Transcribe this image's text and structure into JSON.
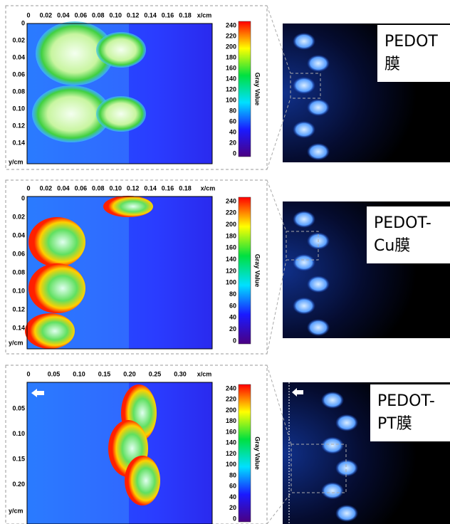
{
  "panels": [
    {
      "x_ticks": [
        "0",
        "0.02",
        "0.04",
        "0.06",
        "0.08",
        "0.10",
        "0.12",
        "0.14",
        "0.16",
        "0.18"
      ],
      "x_unit": "x/cm",
      "y_ticks": [
        "0",
        "0.02",
        "0.04",
        "0.06",
        "0.08",
        "0.10",
        "0.12",
        "0.14"
      ],
      "y_unit": "y/cm",
      "colorbar_ticks": [
        "240",
        "220",
        "200",
        "180",
        "160",
        "140",
        "120",
        "100",
        "80",
        "60",
        "40",
        "20",
        "0"
      ],
      "colorbar_label": "Gray Value",
      "film_label": [
        "PEDOT",
        "膜"
      ]
    },
    {
      "x_ticks": [
        "0",
        "0.02",
        "0.04",
        "0.06",
        "0.08",
        "0.10",
        "0.12",
        "0.14",
        "0.16",
        "0.18"
      ],
      "x_unit": "x/cm",
      "y_ticks": [
        "0",
        "0.02",
        "0.04",
        "0.06",
        "0.08",
        "0.10",
        "0.12",
        "0.14"
      ],
      "y_unit": "y/cm",
      "colorbar_ticks": [
        "240",
        "220",
        "200",
        "180",
        "160",
        "140",
        "120",
        "100",
        "80",
        "60",
        "40",
        "20",
        "0"
      ],
      "colorbar_label": "Gray Value",
      "film_label": [
        "PEDOT-",
        "Cu膜"
      ]
    },
    {
      "x_ticks": [
        "0",
        "0.05",
        "0.10",
        "0.15",
        "0.20",
        "0.25",
        "0.30"
      ],
      "x_unit": "x/cm",
      "y_ticks": [
        "0.05",
        "0.10",
        "0.15",
        "0.20"
      ],
      "y_unit": "y/cm",
      "colorbar_ticks": [
        "240",
        "220",
        "200",
        "180",
        "160",
        "140",
        "120",
        "100",
        "80",
        "60",
        "40",
        "20",
        "0"
      ],
      "colorbar_label": "Gray Value",
      "film_label": [
        "PEDOT-",
        "PT膜"
      ]
    }
  ]
}
